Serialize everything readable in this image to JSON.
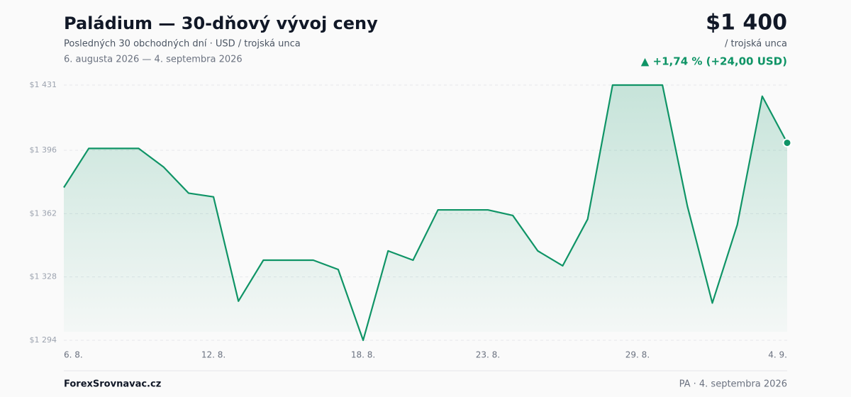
{
  "chart_data": {
    "type": "line",
    "title": "Paládium — 30-dňový vývoj ceny",
    "subtitle": "Posledných 30 obchodných dní · USD / trojská unca",
    "date_range": "6. augusta 2026 — 4. septembra 2026",
    "price": "$1 400",
    "price_unit": "/ trojská unca",
    "change": "▲ +1,74 % (+24,00 USD)",
    "source": "ForexSrovnavac.cz",
    "footer_note": "PA · 4. septembra 2026",
    "categories": [
      "6. 8.",
      null,
      null,
      null,
      null,
      null,
      "12. 8.",
      null,
      null,
      null,
      null,
      null,
      "18. 8.",
      null,
      null,
      null,
      null,
      "23. 8.",
      null,
      null,
      null,
      null,
      null,
      "29. 8.",
      null,
      null,
      null,
      null,
      null,
      "4. 9."
    ],
    "series": [
      {
        "color": "#0f9466",
        "values": [
          1376,
          1397,
          1397,
          1397,
          1387,
          1373,
          1371,
          1315,
          1337,
          1337,
          1337,
          1332,
          1294,
          1342,
          1337,
          1364,
          1364,
          1364,
          1361,
          1342,
          1334,
          1359,
          1431,
          1431,
          1431,
          1366,
          1314,
          1356,
          1425,
          1400
        ]
      }
    ],
    "ylim": [
      1294,
      1431
    ],
    "yticks": [
      {
        "value": 1294,
        "label": "$1 294"
      },
      {
        "value": 1328,
        "label": "$1 328"
      },
      {
        "value": 1362,
        "label": "$1 362"
      },
      {
        "value": 1396,
        "label": "$1 396"
      },
      {
        "value": 1431,
        "label": "$1 431"
      }
    ],
    "grid": true
  }
}
